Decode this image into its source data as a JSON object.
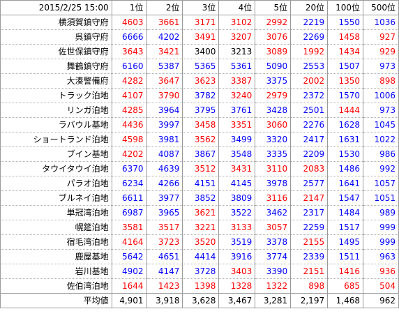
{
  "header": {
    "datetime": "2015/2/25 15:00",
    "ranks": [
      "1位",
      "2位",
      "3位",
      "4位",
      "5位",
      "20位",
      "100位",
      "500位"
    ]
  },
  "colors": {
    "up": "#0000ff",
    "down": "#ff0000"
  },
  "rows": [
    {
      "name": "横須賀鎮守府",
      "values": [
        "4603",
        "3661",
        "3171",
        "3102",
        "2992",
        "2219",
        "1550",
        "1036"
      ],
      "colors": [
        "r",
        "r",
        "r",
        "r",
        "r",
        "b",
        "b",
        "b"
      ]
    },
    {
      "name": "呉鎮守府",
      "values": [
        "6666",
        "4202",
        "3491",
        "3207",
        "3076",
        "2269",
        "1458",
        "927"
      ],
      "colors": [
        "b",
        "b",
        "r",
        "r",
        "r",
        "b",
        "r",
        "r"
      ]
    },
    {
      "name": "佐世保鎮守府",
      "values": [
        "3643",
        "3421",
        "3400",
        "3213",
        "3089",
        "1992",
        "1434",
        "929"
      ],
      "colors": [
        "r",
        "r",
        "k",
        "k",
        "r",
        "r",
        "r",
        "r"
      ]
    },
    {
      "name": "舞鶴鎮守府",
      "values": [
        "6160",
        "5387",
        "5365",
        "5361",
        "5090",
        "2553",
        "1507",
        "973"
      ],
      "colors": [
        "b",
        "b",
        "b",
        "b",
        "b",
        "b",
        "b",
        "b"
      ]
    },
    {
      "name": "大湊警備府",
      "values": [
        "4282",
        "3647",
        "3623",
        "3387",
        "3375",
        "2002",
        "1350",
        "898"
      ],
      "colors": [
        "r",
        "r",
        "r",
        "r",
        "b",
        "r",
        "r",
        "r"
      ]
    },
    {
      "name": "トラック泊地",
      "values": [
        "4107",
        "3790",
        "3782",
        "3240",
        "2979",
        "2372",
        "1570",
        "1006"
      ],
      "colors": [
        "r",
        "r",
        "b",
        "r",
        "r",
        "b",
        "b",
        "b"
      ]
    },
    {
      "name": "リンガ泊地",
      "values": [
        "4285",
        "3964",
        "3795",
        "3761",
        "3428",
        "2501",
        "1444",
        "973"
      ],
      "colors": [
        "r",
        "b",
        "b",
        "b",
        "b",
        "b",
        "r",
        "b"
      ]
    },
    {
      "name": "ラバウル基地",
      "values": [
        "4436",
        "3997",
        "3458",
        "3351",
        "3060",
        "2276",
        "1628",
        "1045"
      ],
      "colors": [
        "r",
        "b",
        "r",
        "r",
        "r",
        "b",
        "b",
        "b"
      ]
    },
    {
      "name": "ショートランド泊地",
      "values": [
        "4598",
        "3981",
        "3562",
        "3499",
        "3320",
        "2417",
        "1631",
        "1022"
      ],
      "colors": [
        "r",
        "b",
        "r",
        "b",
        "b",
        "b",
        "b",
        "b"
      ]
    },
    {
      "name": "ブイン基地",
      "values": [
        "4202",
        "4087",
        "3867",
        "3548",
        "3335",
        "2209",
        "1530",
        "986"
      ],
      "colors": [
        "r",
        "b",
        "b",
        "b",
        "b",
        "b",
        "b",
        "b"
      ]
    },
    {
      "name": "タウイタウイ泊地",
      "values": [
        "6370",
        "4639",
        "3512",
        "3431",
        "3110",
        "2083",
        "1486",
        "992"
      ],
      "colors": [
        "b",
        "b",
        "r",
        "r",
        "r",
        "r",
        "b",
        "b"
      ]
    },
    {
      "name": "パラオ泊地",
      "values": [
        "6234",
        "4266",
        "4151",
        "4145",
        "3978",
        "2577",
        "1641",
        "1057"
      ],
      "colors": [
        "b",
        "b",
        "b",
        "b",
        "b",
        "b",
        "b",
        "b"
      ]
    },
    {
      "name": "ブルネイ泊地",
      "values": [
        "6611",
        "3977",
        "3852",
        "3809",
        "3116",
        "2147",
        "1547",
        "1051"
      ],
      "colors": [
        "b",
        "b",
        "b",
        "b",
        "r",
        "r",
        "b",
        "b"
      ]
    },
    {
      "name": "単冠湾泊地",
      "values": [
        "6987",
        "3965",
        "3621",
        "3522",
        "3462",
        "2317",
        "1484",
        "989"
      ],
      "colors": [
        "b",
        "b",
        "r",
        "b",
        "b",
        "b",
        "b",
        "b"
      ]
    },
    {
      "name": "幌筵泊地",
      "values": [
        "3581",
        "3517",
        "3221",
        "3133",
        "3057",
        "2259",
        "1517",
        "999"
      ],
      "colors": [
        "r",
        "r",
        "r",
        "r",
        "r",
        "b",
        "b",
        "b"
      ]
    },
    {
      "name": "宿毛湾泊地",
      "values": [
        "4164",
        "3723",
        "3520",
        "3519",
        "3378",
        "2155",
        "1495",
        "999"
      ],
      "colors": [
        "r",
        "r",
        "r",
        "b",
        "b",
        "r",
        "b",
        "b"
      ]
    },
    {
      "name": "鹿屋基地",
      "values": [
        "5642",
        "4651",
        "4414",
        "3916",
        "3774",
        "2339",
        "1511",
        "963"
      ],
      "colors": [
        "b",
        "b",
        "b",
        "b",
        "b",
        "b",
        "b",
        "b"
      ]
    },
    {
      "name": "岩川基地",
      "values": [
        "4902",
        "4147",
        "3728",
        "3403",
        "3390",
        "2151",
        "1416",
        "936"
      ],
      "colors": [
        "b",
        "b",
        "b",
        "r",
        "b",
        "r",
        "r",
        "r"
      ]
    },
    {
      "name": "佐伯湾泊地",
      "values": [
        "1644",
        "1423",
        "1398",
        "1328",
        "1322",
        "898",
        "685",
        "504"
      ],
      "colors": [
        "r",
        "r",
        "r",
        "r",
        "r",
        "r",
        "r",
        "r"
      ]
    }
  ],
  "average": {
    "label": "平均値",
    "values": [
      "4,901",
      "3,918",
      "3,628",
      "3,467",
      "3,281",
      "2,197",
      "1,468",
      "962"
    ]
  }
}
